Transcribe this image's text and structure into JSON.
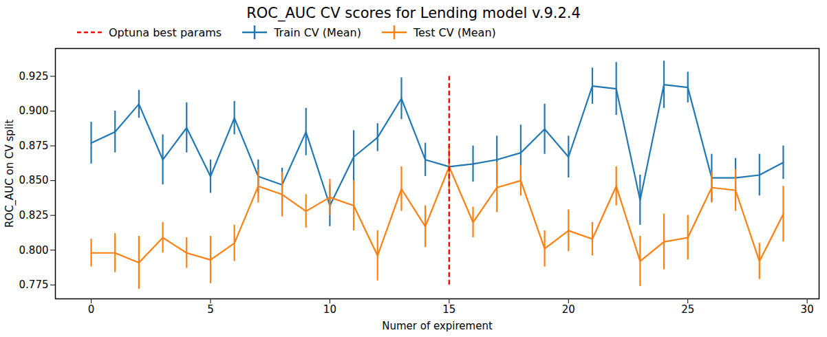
{
  "chart_data": {
    "type": "line",
    "title": "ROC_AUC CV scores for Lending model v.9.2.4",
    "x_label": "Numer of expirement",
    "y_label": "ROC_AUC on CV split",
    "x": [
      0,
      1,
      2,
      3,
      4,
      5,
      6,
      7,
      8,
      9,
      10,
      11,
      12,
      13,
      14,
      15,
      16,
      17,
      18,
      19,
      20,
      21,
      22,
      23,
      24,
      25,
      26,
      27,
      28,
      29
    ],
    "series": [
      {
        "name": "Train CV (Mean)",
        "color": "#1f77b4",
        "values": [
          0.877,
          0.885,
          0.905,
          0.865,
          0.888,
          0.853,
          0.895,
          0.853,
          0.847,
          0.885,
          0.832,
          0.867,
          0.881,
          0.909,
          0.865,
          0.86,
          0.862,
          0.865,
          0.87,
          0.887,
          0.867,
          0.918,
          0.916,
          0.836,
          0.919,
          0.917,
          0.852,
          0.852,
          0.854,
          0.863
        ],
        "errors": [
          0.015,
          0.015,
          0.01,
          0.018,
          0.018,
          0.012,
          0.012,
          0.012,
          0.012,
          0.017,
          0.015,
          0.019,
          0.01,
          0.015,
          0.012,
          0.015,
          0.013,
          0.017,
          0.02,
          0.018,
          0.015,
          0.013,
          0.019,
          0.018,
          0.017,
          0.011,
          0.017,
          0.014,
          0.015,
          0.012
        ]
      },
      {
        "name": "Test CV (Mean)",
        "color": "#ff7f0e",
        "values": [
          0.798,
          0.798,
          0.791,
          0.809,
          0.798,
          0.793,
          0.805,
          0.846,
          0.84,
          0.828,
          0.838,
          0.832,
          0.796,
          0.844,
          0.817,
          0.86,
          0.82,
          0.845,
          0.85,
          0.801,
          0.814,
          0.808,
          0.846,
          0.792,
          0.806,
          0.809,
          0.845,
          0.843,
          0.792,
          0.826
        ],
        "errors": [
          0.01,
          0.014,
          0.019,
          0.011,
          0.011,
          0.017,
          0.013,
          0.012,
          0.016,
          0.012,
          0.013,
          0.018,
          0.018,
          0.016,
          0.015,
          0.016,
          0.011,
          0.018,
          0.011,
          0.013,
          0.015,
          0.012,
          0.014,
          0.018,
          0.02,
          0.016,
          0.011,
          0.015,
          0.013,
          0.02
        ]
      }
    ],
    "vlines": [
      {
        "label": "Optuna best params",
        "x": 15,
        "ymin": 0.775,
        "ymax": 0.925,
        "color": "red",
        "line_style": "dashed"
      }
    ],
    "xlim": [
      -1.5,
      30.5
    ],
    "xticks": [
      0,
      5,
      10,
      15,
      20,
      25,
      30
    ],
    "ylim": [
      0.765,
      0.945
    ],
    "yticks": [
      0.775,
      {
        "value": 0.8,
        "label": "0.800"
      },
      0.825,
      {
        "value": 0.85,
        "label": "0.850"
      },
      0.875,
      {
        "value": 0.9,
        "label": "0.900"
      },
      0.925
    ],
    "legend": "upper left",
    "grid": false
  }
}
